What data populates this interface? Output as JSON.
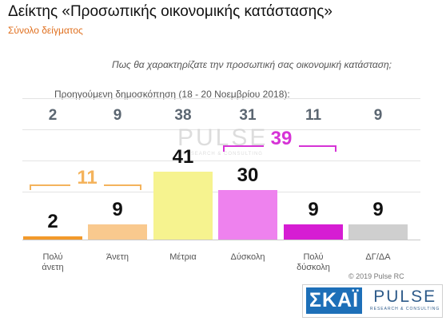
{
  "header": {
    "title": "Δείκτης «Προσωπικής οικονομικής κατάστασης»",
    "subtitle": "Σύνολο δείγματος"
  },
  "question": "Πως θα χαρακτηρίζατε την προσωπική σας οικονομική κατάσταση;",
  "previous_poll_caption": "Προηγούμενη δημοσκόπηση (18 - 20 Νοεμβρίου 2018):",
  "chart_data": {
    "type": "bar",
    "categories": [
      "Πολύ\nάνετη",
      "Άνετη",
      "Μέτρια",
      "Δύσκολη",
      "Πολύ\nδύσκολη",
      "ΔΓ/ΔΑ"
    ],
    "values": [
      2,
      9,
      41,
      30,
      9,
      9
    ],
    "previous_values": [
      2,
      9,
      38,
      31,
      11,
      9
    ],
    "colors": [
      "#f39a2b",
      "#f9c98e",
      "#f6f38f",
      "#ee82ee",
      "#d61dd3",
      "#cfcfcf"
    ],
    "groups": [
      {
        "value": "11",
        "color": "#f4b35c"
      },
      {
        "value": "39",
        "color": "#d633d6"
      }
    ],
    "ylim": [
      0,
      45
    ]
  },
  "watermark": {
    "brand": "PULSE",
    "tagline": "RESEARCH & CONSULTING"
  },
  "copyright": "© 2019 Pulse RC",
  "logos": {
    "skai": "ΣΚΑΪ",
    "pulse": "PULSE",
    "pulse_tagline": "RESEARCH & CONSULTING"
  }
}
